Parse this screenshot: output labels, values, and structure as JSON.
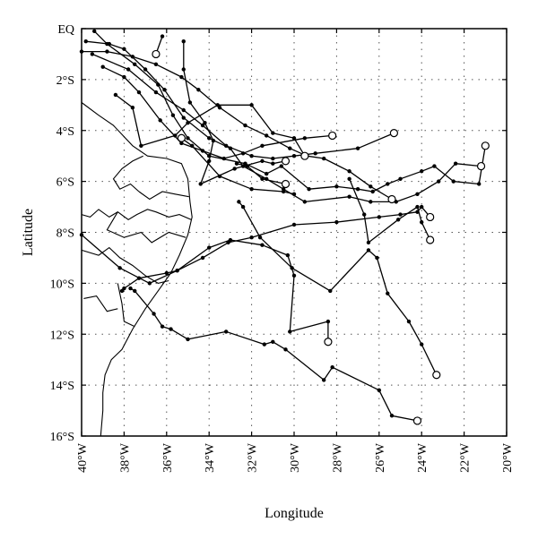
{
  "map": {
    "xlabel": "Longitude",
    "ylabel": "Latitude",
    "xlim": [
      -40,
      -20
    ],
    "ylim": [
      -16,
      0
    ],
    "x_ticks": [
      {
        "value": -40,
        "label": "40°W"
      },
      {
        "value": -38,
        "label": "38°W"
      },
      {
        "value": -36,
        "label": "36°W"
      },
      {
        "value": -34,
        "label": "34°W"
      },
      {
        "value": -32,
        "label": "32°W"
      },
      {
        "value": -30,
        "label": "30°W"
      },
      {
        "value": -28,
        "label": "28°W"
      },
      {
        "value": -26,
        "label": "26°W"
      },
      {
        "value": -24,
        "label": "24°W"
      },
      {
        "value": -22,
        "label": "22°W"
      },
      {
        "value": -20,
        "label": "20°W"
      }
    ],
    "y_ticks": [
      {
        "value": 0,
        "label": "EQ"
      },
      {
        "value": -2,
        "label": "2°S"
      },
      {
        "value": -4,
        "label": "4°S"
      },
      {
        "value": -6,
        "label": "6°S"
      },
      {
        "value": -8,
        "label": "8°S"
      },
      {
        "value": -10,
        "label": "10°S"
      },
      {
        "value": -12,
        "label": "12°S"
      },
      {
        "value": -14,
        "label": "14°S"
      },
      {
        "value": -16,
        "label": "16°S"
      }
    ],
    "grid": true,
    "coastline": [
      [
        -40,
        -2.9
      ],
      [
        -39.2,
        -3.4
      ],
      [
        -38.5,
        -3.8
      ],
      [
        -37.6,
        -4.6
      ],
      [
        -36.9,
        -5.0
      ],
      [
        -36.0,
        -5.1
      ],
      [
        -35.3,
        -5.3
      ],
      [
        -35.0,
        -5.9
      ],
      [
        -34.9,
        -6.8
      ],
      [
        -34.8,
        -7.4
      ],
      [
        -35.0,
        -8.1
      ],
      [
        -35.4,
        -8.9
      ],
      [
        -35.8,
        -9.6
      ],
      [
        -36.4,
        -10.3
      ],
      [
        -37.0,
        -11.0
      ],
      [
        -37.6,
        -11.8
      ],
      [
        -38.1,
        -12.6
      ],
      [
        -38.6,
        -13.0
      ],
      [
        -38.9,
        -13.6
      ],
      [
        -39.0,
        -14.3
      ],
      [
        -39.0,
        -15.0
      ],
      [
        -39.1,
        -16.0
      ]
    ],
    "state_borders": [
      [
        [
          -40,
          -7.3
        ],
        [
          -39.6,
          -7.4
        ],
        [
          -39.2,
          -7.1
        ],
        [
          -38.7,
          -7.4
        ],
        [
          -38.3,
          -7.2
        ],
        [
          -37.8,
          -7.5
        ],
        [
          -37.4,
          -7.3
        ],
        [
          -36.9,
          -7.1
        ],
        [
          -36.5,
          -7.2
        ],
        [
          -35.9,
          -7.4
        ],
        [
          -35.4,
          -7.3
        ],
        [
          -34.85,
          -7.5
        ]
      ],
      [
        [
          -37.3,
          -6.4
        ],
        [
          -37.7,
          -6.1
        ],
        [
          -38.2,
          -6.3
        ],
        [
          -38.5,
          -5.9
        ],
        [
          -38.1,
          -5.5
        ],
        [
          -37.6,
          -5.2
        ],
        [
          -37.1,
          -5.0
        ]
      ],
      [
        [
          -37.3,
          -6.4
        ],
        [
          -36.8,
          -6.7
        ],
        [
          -36.2,
          -6.4
        ],
        [
          -35.6,
          -6.5
        ],
        [
          -34.95,
          -6.6
        ]
      ],
      [
        [
          -40,
          -8.7
        ],
        [
          -39.2,
          -8.9
        ],
        [
          -38.7,
          -8.6
        ],
        [
          -38.2,
          -9.0
        ],
        [
          -37.6,
          -9.3
        ],
        [
          -37.0,
          -9.7
        ],
        [
          -36.4,
          -10.0
        ],
        [
          -35.9,
          -9.9
        ]
      ],
      [
        [
          -38.3,
          -7.2
        ],
        [
          -38.8,
          -7.9
        ],
        [
          -38.0,
          -8.2
        ],
        [
          -37.2,
          -8.0
        ],
        [
          -36.7,
          -8.4
        ],
        [
          -35.9,
          -8.0
        ],
        [
          -35.1,
          -8.2
        ]
      ],
      [
        [
          -38.3,
          -10.0
        ],
        [
          -38.1,
          -10.8
        ],
        [
          -38.0,
          -11.5
        ],
        [
          -37.5,
          -11.7
        ]
      ],
      [
        [
          -39.9,
          -10.6
        ],
        [
          -39.3,
          -10.5
        ],
        [
          -38.8,
          -11.1
        ],
        [
          -38.3,
          -11.0
        ]
      ]
    ],
    "tracks": [
      {
        "start": [
          -36.5,
          -1.0
        ],
        "points": [
          [
            -36.5,
            -1.0
          ],
          [
            -36.2,
            -0.3
          ]
        ]
      },
      {
        "start": [
          -35.3,
          -4.3
        ],
        "points": [
          [
            -35.3,
            -4.3
          ],
          [
            -34.8,
            -4.6
          ],
          [
            -33.5,
            -5.8
          ],
          [
            -32.0,
            -6.3
          ],
          [
            -30.5,
            -6.4
          ],
          [
            -30.0,
            -6.5
          ]
        ]
      },
      {
        "start": [
          -28.2,
          -4.2
        ],
        "points": [
          [
            -28.2,
            -4.2
          ],
          [
            -29.5,
            -4.3
          ],
          [
            -31.5,
            -4.6
          ],
          [
            -32.4,
            -4.9
          ],
          [
            -33.3,
            -5.1
          ],
          [
            -34.3,
            -4.8
          ],
          [
            -35.3,
            -4.5
          ],
          [
            -36.3,
            -3.6
          ],
          [
            -37.3,
            -2.5
          ],
          [
            -38.0,
            -1.9
          ],
          [
            -39.0,
            -1.5
          ]
        ]
      },
      {
        "start": [
          -25.3,
          -4.1
        ],
        "points": [
          [
            -25.3,
            -4.1
          ],
          [
            -27.0,
            -4.7
          ],
          [
            -29.0,
            -4.9
          ],
          [
            -30.0,
            -5.0
          ],
          [
            -31.0,
            -5.1
          ],
          [
            -32.0,
            -5.0
          ],
          [
            -33.2,
            -4.6
          ],
          [
            -34.3,
            -3.8
          ],
          [
            -35.2,
            -3.2
          ],
          [
            -36.5,
            -2.5
          ],
          [
            -37.8,
            -1.6
          ],
          [
            -39.5,
            -1.0
          ]
        ]
      },
      {
        "start": [
          -21.0,
          -4.6
        ],
        "points": [
          [
            -21.0,
            -4.6
          ],
          [
            -21.3,
            -6.1
          ],
          [
            -22.5,
            -6.0
          ],
          [
            -23.4,
            -5.4
          ],
          [
            -24.0,
            -5.6
          ],
          [
            -25.0,
            -5.9
          ],
          [
            -25.6,
            -6.1
          ],
          [
            -26.3,
            -6.4
          ],
          [
            -27.0,
            -6.3
          ],
          [
            -28.0,
            -6.2
          ],
          [
            -29.3,
            -6.3
          ],
          [
            -30.6,
            -5.4
          ],
          [
            -31.3,
            -5.7
          ],
          [
            -32.3,
            -5.3
          ],
          [
            -34.0,
            -5.0
          ],
          [
            -35.0,
            -4.3
          ],
          [
            -35.7,
            -3.4
          ],
          [
            -36.4,
            -2.2
          ],
          [
            -37.5,
            -1.4
          ],
          [
            -38.8,
            -0.6
          ],
          [
            -39.4,
            -0.1
          ]
        ]
      },
      {
        "start": [
          -21.2,
          -5.4
        ],
        "points": [
          [
            -21.2,
            -5.4
          ],
          [
            -22.4,
            -5.3
          ],
          [
            -23.2,
            -6.0
          ],
          [
            -24.2,
            -6.5
          ],
          [
            -25.2,
            -6.8
          ],
          [
            -26.4,
            -6.8
          ],
          [
            -27.4,
            -6.6
          ],
          [
            -29.5,
            -6.8
          ],
          [
            -30.5,
            -6.3
          ],
          [
            -31.3,
            -5.9
          ],
          [
            -32.4,
            -5.4
          ],
          [
            -33.0,
            -4.7
          ],
          [
            -34.0,
            -4.3
          ],
          [
            -35.2,
            -3.5
          ],
          [
            -36.1,
            -2.4
          ],
          [
            -37.0,
            -1.6
          ],
          [
            -38.0,
            -0.8
          ],
          [
            -38.7,
            -0.6
          ],
          [
            -39.8,
            -0.5
          ]
        ]
      },
      {
        "start": [
          -25.4,
          -6.7
        ],
        "points": [
          [
            -25.4,
            -6.7
          ],
          [
            -26.4,
            -6.2
          ],
          [
            -27.4,
            -5.6
          ],
          [
            -28.6,
            -5.1
          ],
          [
            -29.4,
            -5.0
          ],
          [
            -30.2,
            -4.7
          ],
          [
            -31.3,
            -4.2
          ],
          [
            -32.3,
            -3.8
          ],
          [
            -33.5,
            -3.1
          ],
          [
            -34.5,
            -2.4
          ],
          [
            -35.3,
            -1.9
          ],
          [
            -36.5,
            -1.4
          ],
          [
            -37.6,
            -1.1
          ],
          [
            -38.8,
            -0.9
          ],
          [
            -40.0,
            -0.9
          ]
        ]
      },
      {
        "start": [
          -24.2,
          -15.4
        ],
        "points": [
          [
            -24.2,
            -15.4
          ],
          [
            -25.4,
            -15.2
          ],
          [
            -26.0,
            -14.2
          ],
          [
            -28.2,
            -13.3
          ],
          [
            -28.6,
            -13.8
          ],
          [
            -30.4,
            -12.6
          ],
          [
            -31.0,
            -12.3
          ],
          [
            -31.4,
            -12.4
          ],
          [
            -33.2,
            -11.9
          ],
          [
            -35.0,
            -12.2
          ],
          [
            -35.8,
            -11.8
          ],
          [
            -36.2,
            -11.7
          ],
          [
            -36.6,
            -11.2
          ],
          [
            -37.5,
            -10.3
          ],
          [
            -37.7,
            -10.2
          ]
        ]
      },
      {
        "start": [
          -28.4,
          -12.3
        ],
        "points": [
          [
            -28.4,
            -12.3
          ],
          [
            -28.4,
            -11.5
          ],
          [
            -30.2,
            -11.9
          ],
          [
            -30.0,
            -9.7
          ],
          [
            -30.3,
            -8.9
          ],
          [
            -31.5,
            -8.5
          ],
          [
            -33.0,
            -8.3
          ],
          [
            -34.0,
            -8.6
          ],
          [
            -35.5,
            -9.5
          ],
          [
            -36.0,
            -9.6
          ],
          [
            -37.3,
            -9.8
          ],
          [
            -38.0,
            -10.2
          ],
          [
            -38.1,
            -10.3
          ]
        ]
      },
      {
        "start": [
          -23.3,
          -13.6
        ],
        "points": [
          [
            -23.3,
            -13.6
          ],
          [
            -24.0,
            -12.4
          ],
          [
            -24.6,
            -11.5
          ],
          [
            -25.6,
            -10.4
          ],
          [
            -26.1,
            -9.0
          ],
          [
            -26.5,
            -8.7
          ],
          [
            -28.3,
            -10.3
          ],
          [
            -30.1,
            -9.4
          ],
          [
            -31.6,
            -8.2
          ],
          [
            -32.4,
            -7.0
          ],
          [
            -32.6,
            -6.8
          ]
        ]
      },
      {
        "start": [
          -23.6,
          -8.3
        ],
        "points": [
          [
            -23.6,
            -8.3
          ],
          [
            -24.0,
            -7.6
          ],
          [
            -24.2,
            -7.0
          ],
          [
            -25.1,
            -7.5
          ],
          [
            -26.5,
            -8.4
          ],
          [
            -26.7,
            -7.3
          ],
          [
            -27.4,
            -5.9
          ]
        ]
      },
      {
        "start": [
          -23.6,
          -7.4
        ],
        "points": [
          [
            -23.6,
            -7.4
          ],
          [
            -24.0,
            -7.0
          ],
          [
            -24.2,
            -7.2
          ],
          [
            -25.0,
            -7.3
          ],
          [
            -26.0,
            -7.4
          ],
          [
            -28.0,
            -7.6
          ],
          [
            -30.0,
            -7.7
          ],
          [
            -32.0,
            -8.2
          ],
          [
            -33.1,
            -8.4
          ],
          [
            -34.3,
            -9.0
          ],
          [
            -35.5,
            -9.5
          ],
          [
            -36.8,
            -10.0
          ],
          [
            -38.2,
            -9.4
          ],
          [
            -40.0,
            -8.1
          ]
        ]
      },
      {
        "start": [
          -30.4,
          -5.2
        ],
        "points": [
          [
            -30.4,
            -5.2
          ],
          [
            -31.0,
            -5.3
          ],
          [
            -31.5,
            -5.2
          ],
          [
            -32.8,
            -5.5
          ],
          [
            -34.4,
            -6.1
          ],
          [
            -34.0,
            -5.2
          ],
          [
            -33.8,
            -4.4
          ],
          [
            -34.2,
            -3.7
          ],
          [
            -34.9,
            -2.9
          ],
          [
            -35.2,
            -1.6
          ],
          [
            -35.2,
            -0.5
          ]
        ]
      },
      {
        "start": [
          -29.5,
          -5.0
        ],
        "points": [
          [
            -29.5,
            -5.0
          ],
          [
            -30.0,
            -4.3
          ],
          [
            -31.0,
            -4.1
          ],
          [
            -32.0,
            -3.0
          ],
          [
            -33.6,
            -3.0
          ],
          [
            -35.0,
            -3.7
          ],
          [
            -35.6,
            -4.2
          ],
          [
            -37.2,
            -4.6
          ],
          [
            -37.6,
            -3.1
          ],
          [
            -38.4,
            -2.6
          ]
        ]
      },
      {
        "start": [
          -30.4,
          -6.1
        ],
        "points": [
          [
            -30.4,
            -6.1
          ],
          [
            -31.5,
            -5.9
          ],
          [
            -32.2,
            -5.4
          ],
          [
            -32.7,
            -5.3
          ]
        ]
      }
    ]
  }
}
